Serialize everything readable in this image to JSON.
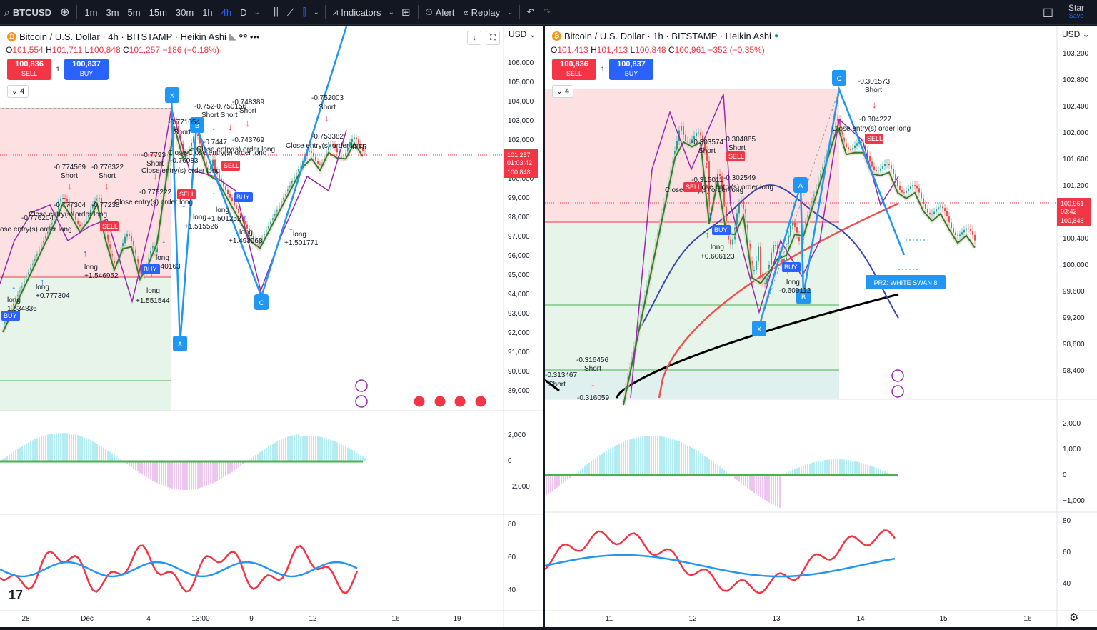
{
  "toolbar": {
    "symbol": "BTCUSD",
    "timeframes": [
      "1m",
      "3m",
      "5m",
      "15m",
      "30m",
      "1h",
      "4h",
      "D"
    ],
    "active_timeframe": "4h",
    "indicators_label": "Indicators",
    "alert_label": "Alert",
    "replay_label": "Replay",
    "star_label": "Star",
    "save_label": "Save"
  },
  "left": {
    "title": "Bitcoin / U.S. Dollar · 4h · BITSTAMP · Heikin Ashi",
    "ohlc": {
      "o": "101,554",
      "h": "101,711",
      "l": "100,848",
      "c": "101,257",
      "chg": "−186 (−0.18%)"
    },
    "sell_price": "100,836",
    "sell_label": "SELL",
    "buy_price": "100,837",
    "buy_label": "BUY",
    "qty": "1",
    "collapse": "4",
    "currency": "USD",
    "price_ticks": [
      "106,000",
      "105,000",
      "104,000",
      "103,000",
      "102,000",
      "101,000",
      "100,000",
      "99,000",
      "98,000",
      "97,000",
      "96,000",
      "95,000",
      "94,000",
      "93,000",
      "92,000",
      "91,000",
      "90,000",
      "89,000"
    ],
    "last_price": "101,257",
    "countdown": "01:03:42",
    "bid_price": "100,848",
    "macd_ticks": [
      "2,000",
      "0",
      "−2,000"
    ],
    "rsi_ticks": [
      "80",
      "60",
      "40"
    ],
    "time_ticks": [
      "28",
      "Dec",
      "4",
      "13:00",
      "9",
      "12",
      "16",
      "19"
    ],
    "pattern_points": {
      "x": "X",
      "a": "A",
      "b": "B",
      "c": "C"
    },
    "annotations": [
      {
        "t": "-0.774569"
      },
      {
        "t": "Short"
      },
      {
        "t": "-0.776322"
      },
      {
        "t": "Short"
      },
      {
        "t": "-0.777304"
      },
      {
        "t": "-0.77238"
      },
      {
        "t": "Close entry(s) order long"
      },
      {
        "t": "-0.776204"
      },
      {
        "t": "ose entry(s) order long"
      },
      {
        "t": "long"
      },
      {
        "t": "+1.546952"
      },
      {
        "t": "long"
      },
      {
        "t": "+0.777304"
      },
      {
        "t": "long"
      },
      {
        "t": "1.534836"
      },
      {
        "t": "-0.775222"
      },
      {
        "t": "Close entry(s) order long"
      },
      {
        "t": "long"
      },
      {
        "t": "+1.540163"
      },
      {
        "t": "long"
      },
      {
        "t": "+1.551544"
      },
      {
        "t": "-0.7793"
      },
      {
        "t": "Short"
      },
      {
        "t": "Close entry(s) order long"
      },
      {
        "t": "-0.771054"
      },
      {
        "t": "Short"
      },
      {
        "t": "-0.76083"
      },
      {
        "t": "Close Close entry(s) order long"
      },
      {
        "t": "-0.752"
      },
      {
        "t": "-0.750156"
      },
      {
        "t": "Short Short"
      },
      {
        "t": "-0.748389"
      },
      {
        "t": "Short"
      },
      {
        "t": "-0.743769"
      },
      {
        "t": "Close entry(s) order long"
      },
      {
        "t": "-0.7447"
      },
      {
        "t": "long"
      },
      {
        "t": "+1.515526"
      },
      {
        "t": "long"
      },
      {
        "t": "+1.501252"
      },
      {
        "t": "long"
      },
      {
        "t": "+1.493968"
      },
      {
        "t": "long"
      },
      {
        "t": "+1.501771"
      },
      {
        "t": "-0.752003"
      },
      {
        "t": "Short"
      },
      {
        "t": "-0.753382"
      },
      {
        "t": "Close entry(s) order long"
      },
      {
        "t": "-0.75"
      }
    ],
    "tags": {
      "sell": "SELL",
      "buy": "BUY"
    }
  },
  "right": {
    "title": "Bitcoin / U.S. Dollar · 1h · BITSTAMP · Heikin Ashi",
    "ohlc": {
      "o": "101,413",
      "h": "101,413",
      "l": "100,848",
      "c": "100,961",
      "chg": "−352 (−0.35%)"
    },
    "sell_price": "100,836",
    "sell_label": "SELL",
    "buy_price": "100,837",
    "buy_label": "BUY",
    "qty": "1",
    "collapse": "4",
    "currency": "USD",
    "price_ticks": [
      "103,200",
      "102,800",
      "102,400",
      "102,000",
      "101,600",
      "101,200",
      "100,800",
      "100,400",
      "100,000",
      "99,600",
      "99,200",
      "98,800",
      "98,400"
    ],
    "last_price": "100,961",
    "countdown": "03:42",
    "bid_price": "100,848",
    "macd_ticks": [
      "2,000",
      "1,000",
      "0",
      "−1,000"
    ],
    "rsi_ticks": [
      "80",
      "60",
      "40"
    ],
    "time_ticks": [
      "11",
      "12",
      "13",
      "14",
      "15",
      "16"
    ],
    "pattern_points": {
      "x": "X",
      "a": "A",
      "b": "B",
      "c": "C"
    },
    "prz_label": "PRZ: WHITE SWAN 8",
    "annotations": [
      {
        "t": "-0.301573"
      },
      {
        "t": "Short"
      },
      {
        "t": "-0.304227"
      },
      {
        "t": "Close entry(s) order long"
      },
      {
        "t": "-0.303574"
      },
      {
        "t": "Short"
      },
      {
        "t": "-0.304885"
      },
      {
        "t": "Short"
      },
      {
        "t": "-0.315011"
      },
      {
        "t": "-0.302549"
      },
      {
        "t": "Close entry(s) order long"
      },
      {
        "t": "Close entry(s) order long"
      },
      {
        "t": "long"
      },
      {
        "t": "+0.606123"
      },
      {
        "t": "long"
      },
      {
        "t": "-0.609112"
      },
      {
        "t": "-0.316456"
      },
      {
        "t": "Short"
      },
      {
        "t": "-0.313467"
      },
      {
        "t": "Short"
      },
      {
        "t": "-0.316059"
      }
    ],
    "tags": {
      "sell": "SELL",
      "buy": "BUY"
    }
  }
}
